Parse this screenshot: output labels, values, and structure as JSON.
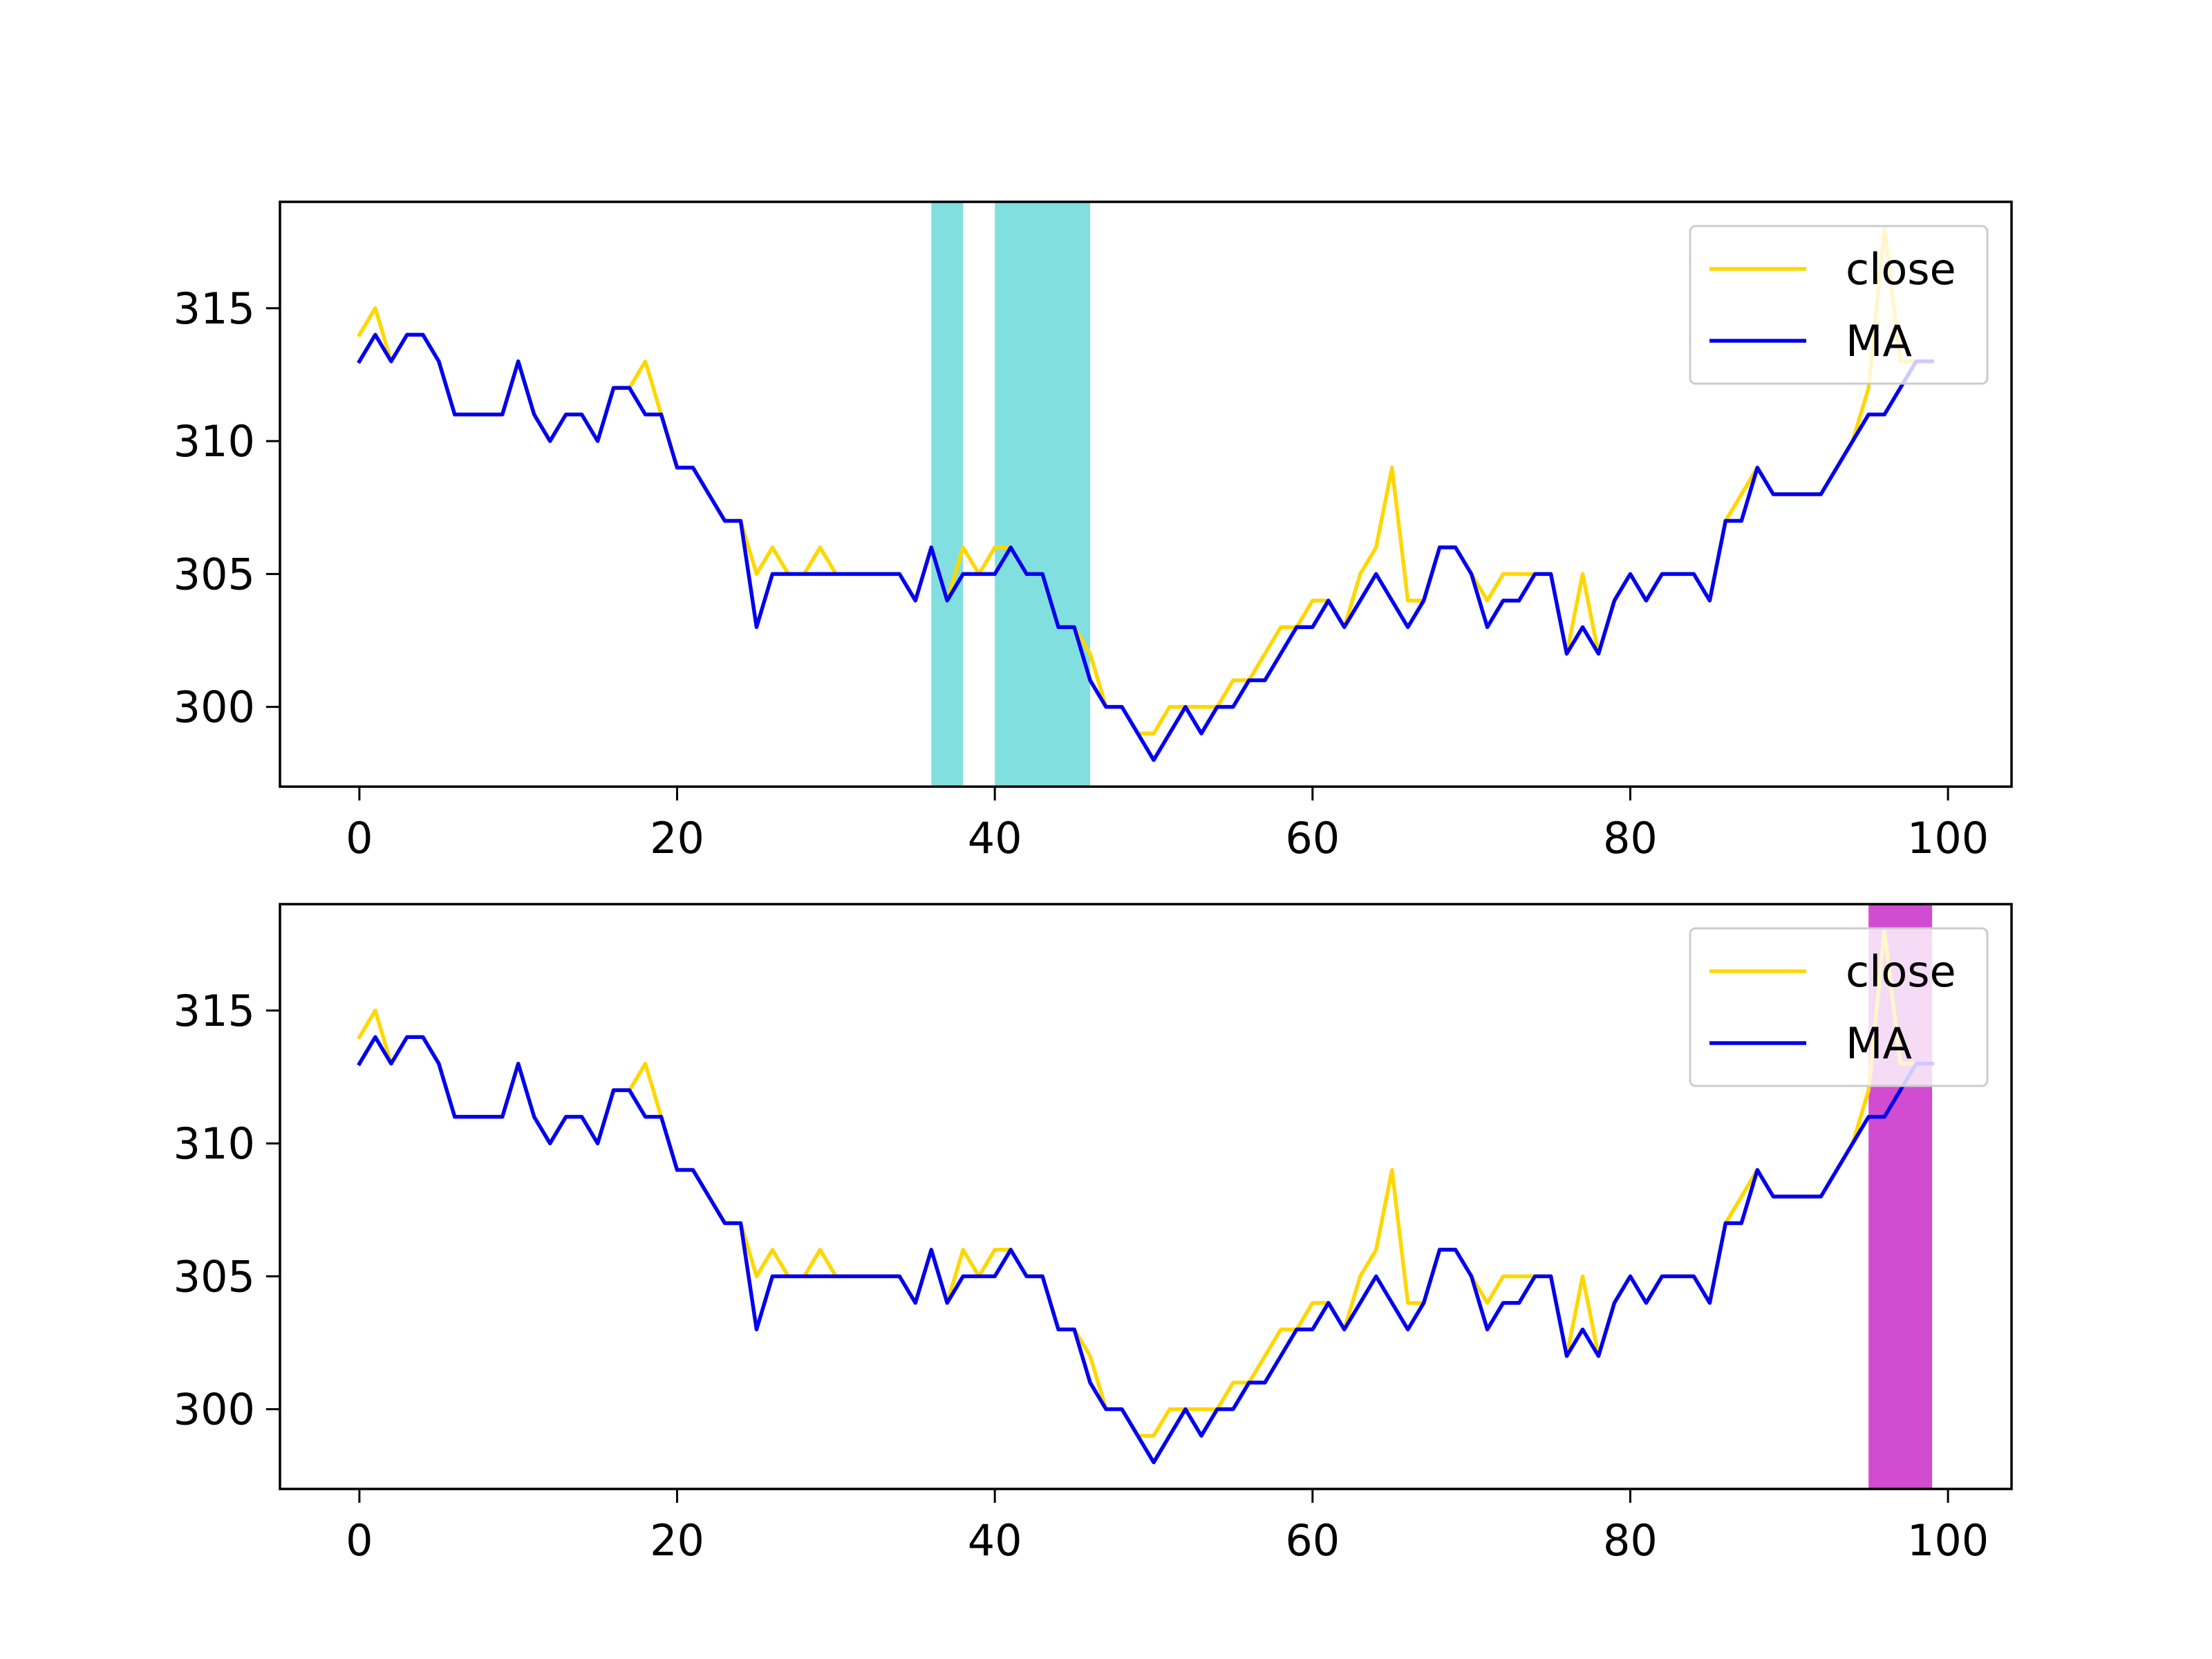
{
  "chart_data": [
    {
      "type": "line",
      "x_ticks": [
        0,
        20,
        40,
        60,
        80,
        100
      ],
      "y_ticks": [
        300,
        305,
        310,
        315
      ],
      "xlim": [
        -5,
        104
      ],
      "ylim": [
        297,
        319
      ],
      "grid": false,
      "legend_position": "top-right",
      "x": [
        0,
        1,
        2,
        3,
        4,
        5,
        6,
        7,
        8,
        9,
        10,
        11,
        12,
        13,
        14,
        15,
        16,
        17,
        18,
        19,
        20,
        21,
        22,
        23,
        24,
        25,
        26,
        27,
        28,
        29,
        30,
        31,
        32,
        33,
        34,
        35,
        36,
        37,
        38,
        39,
        40,
        41,
        42,
        43,
        44,
        45,
        46,
        47,
        48,
        49,
        50,
        51,
        52,
        53,
        54,
        55,
        56,
        57,
        58,
        59,
        60,
        61,
        62,
        63,
        64,
        65,
        66,
        67,
        68,
        69,
        70,
        71,
        72,
        73,
        74,
        75,
        76,
        77,
        78,
        79,
        80,
        81,
        82,
        83,
        84,
        85,
        86,
        87,
        88,
        89,
        90,
        91,
        92,
        93,
        94,
        95,
        96,
        97,
        98,
        99
      ],
      "series": [
        {
          "name": "close",
          "color": "#FFD700",
          "values": [
            314,
            315,
            313,
            314,
            314,
            313,
            311,
            311,
            311,
            311,
            313,
            311,
            310,
            311,
            311,
            310,
            312,
            312,
            313,
            311,
            309,
            309,
            308,
            307,
            307,
            305,
            306,
            305,
            305,
            306,
            305,
            305,
            305,
            305,
            305,
            304,
            306,
            304,
            306,
            305,
            306,
            306,
            305,
            305,
            303,
            303,
            302,
            300,
            300,
            299,
            299,
            300,
            300,
            300,
            300,
            301,
            301,
            302,
            303,
            303,
            304,
            304,
            303,
            305,
            306,
            309,
            304,
            304,
            306,
            306,
            305,
            304,
            305,
            305,
            305,
            305,
            302,
            305,
            302,
            304,
            305,
            304,
            305,
            305,
            305,
            304,
            307,
            308,
            309,
            308,
            308,
            308,
            308,
            309,
            310,
            312,
            318,
            313,
            313,
            313
          ]
        },
        {
          "name": "MA",
          "color": "#0000EE",
          "values": [
            313,
            314,
            313,
            314,
            314,
            313,
            311,
            311,
            311,
            311,
            313,
            311,
            310,
            311,
            311,
            310,
            312,
            312,
            311,
            311,
            309,
            309,
            308,
            307,
            307,
            303,
            305,
            305,
            305,
            305,
            305,
            305,
            305,
            305,
            305,
            304,
            306,
            304,
            305,
            305,
            305,
            306,
            305,
            305,
            303,
            303,
            301,
            300,
            300,
            299,
            298,
            299,
            300,
            299,
            300,
            300,
            301,
            301,
            302,
            303,
            303,
            304,
            303,
            304,
            305,
            304,
            303,
            304,
            306,
            306,
            305,
            303,
            304,
            304,
            305,
            305,
            302,
            303,
            302,
            304,
            305,
            304,
            305,
            305,
            305,
            304,
            307,
            307,
            309,
            308,
            308,
            308,
            308,
            309,
            310,
            311,
            311,
            312,
            313,
            313
          ]
        }
      ],
      "highlights": [
        {
          "x_start": 36,
          "x_end": 38,
          "color": "#4DD2D2"
        },
        {
          "x_start": 40,
          "x_end": 46,
          "color": "#4DD2D2"
        }
      ]
    },
    {
      "type": "line",
      "x_ticks": [
        0,
        20,
        40,
        60,
        80,
        100
      ],
      "y_ticks": [
        300,
        305,
        310,
        315
      ],
      "xlim": [
        -5,
        104
      ],
      "ylim": [
        297,
        319
      ],
      "grid": false,
      "legend_position": "top-right",
      "x": [
        0,
        1,
        2,
        3,
        4,
        5,
        6,
        7,
        8,
        9,
        10,
        11,
        12,
        13,
        14,
        15,
        16,
        17,
        18,
        19,
        20,
        21,
        22,
        23,
        24,
        25,
        26,
        27,
        28,
        29,
        30,
        31,
        32,
        33,
        34,
        35,
        36,
        37,
        38,
        39,
        40,
        41,
        42,
        43,
        44,
        45,
        46,
        47,
        48,
        49,
        50,
        51,
        52,
        53,
        54,
        55,
        56,
        57,
        58,
        59,
        60,
        61,
        62,
        63,
        64,
        65,
        66,
        67,
        68,
        69,
        70,
        71,
        72,
        73,
        74,
        75,
        76,
        77,
        78,
        79,
        80,
        81,
        82,
        83,
        84,
        85,
        86,
        87,
        88,
        89,
        90,
        91,
        92,
        93,
        94,
        95,
        96,
        97,
        98,
        99
      ],
      "series": [
        {
          "name": "close",
          "color": "#FFD700",
          "values": [
            314,
            315,
            313,
            314,
            314,
            313,
            311,
            311,
            311,
            311,
            313,
            311,
            310,
            311,
            311,
            310,
            312,
            312,
            313,
            311,
            309,
            309,
            308,
            307,
            307,
            305,
            306,
            305,
            305,
            306,
            305,
            305,
            305,
            305,
            305,
            304,
            306,
            304,
            306,
            305,
            306,
            306,
            305,
            305,
            303,
            303,
            302,
            300,
            300,
            299,
            299,
            300,
            300,
            300,
            300,
            301,
            301,
            302,
            303,
            303,
            304,
            304,
            303,
            305,
            306,
            309,
            304,
            304,
            306,
            306,
            305,
            304,
            305,
            305,
            305,
            305,
            302,
            305,
            302,
            304,
            305,
            304,
            305,
            305,
            305,
            304,
            307,
            308,
            309,
            308,
            308,
            308,
            308,
            309,
            310,
            312,
            318,
            313,
            313,
            313
          ]
        },
        {
          "name": "MA",
          "color": "#0000EE",
          "values": [
            313,
            314,
            313,
            314,
            314,
            313,
            311,
            311,
            311,
            311,
            313,
            311,
            310,
            311,
            311,
            310,
            312,
            312,
            311,
            311,
            309,
            309,
            308,
            307,
            307,
            303,
            305,
            305,
            305,
            305,
            305,
            305,
            305,
            305,
            305,
            304,
            306,
            304,
            305,
            305,
            305,
            306,
            305,
            305,
            303,
            303,
            301,
            300,
            300,
            299,
            298,
            299,
            300,
            299,
            300,
            300,
            301,
            301,
            302,
            303,
            303,
            304,
            303,
            304,
            305,
            304,
            303,
            304,
            306,
            306,
            305,
            303,
            304,
            304,
            305,
            305,
            302,
            303,
            302,
            304,
            305,
            304,
            305,
            305,
            305,
            304,
            307,
            307,
            309,
            308,
            308,
            308,
            308,
            309,
            310,
            311,
            311,
            312,
            313,
            313
          ]
        }
      ],
      "highlights": [
        {
          "x_start": 95,
          "x_end": 99,
          "color": "#BF00BF"
        }
      ]
    }
  ]
}
